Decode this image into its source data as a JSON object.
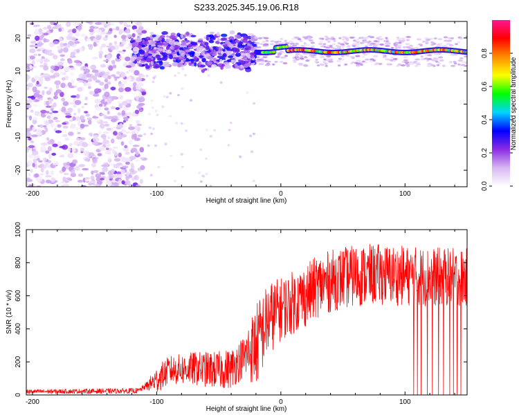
{
  "figure": {
    "title": "S233.2025.345.19.06.R18"
  },
  "chart_data": [
    {
      "type": "heatmap",
      "title": "S233.2025.345.19.06.R18",
      "xlabel": "Height of straight line (km)",
      "ylabel": "Frequency (Hz)",
      "xlim": [
        -205,
        150
      ],
      "ylim": [
        -25,
        25
      ],
      "x_ticks": [
        -200,
        -100,
        0,
        100
      ],
      "y_ticks": [
        20,
        10,
        0,
        -10,
        -20
      ],
      "colorbar": {
        "label": "Normalized spectral amplitude",
        "range": [
          0.0,
          1.0
        ],
        "ticks": [
          0.0,
          0.2,
          0.4,
          0.6,
          0.8
        ],
        "tick_labels": [
          "0.0",
          "0.2",
          "0.4",
          "0.6",
          "0.8"
        ],
        "colors": [
          "#ffffff",
          "#d6b6f2",
          "#8a2be2",
          "#0000ff",
          "#00d5ff",
          "#00ff00",
          "#ffff00",
          "#ff8c00",
          "#ff0000",
          "#ff1493"
        ]
      },
      "features": [
        {
          "name": "ridge",
          "x_range": [
            -20,
            150
          ],
          "frequency_hz": 16,
          "amplitude": 0.75
        },
        {
          "name": "peak_ridge",
          "x_range": [
            -120,
            -20
          ],
          "frequency_hz_range": [
            12,
            20
          ],
          "amplitude": 0.3
        },
        {
          "name": "noise",
          "x_range": [
            -205,
            -110
          ],
          "frequency_hz_range": [
            -25,
            25
          ],
          "amplitude": 0.15
        }
      ]
    },
    {
      "type": "line",
      "xlabel": "Height of straight line (km)",
      "ylabel": "SNR (10 * v/v)",
      "xlim": [
        -205,
        150
      ],
      "ylim": [
        0,
        1000
      ],
      "x_ticks": [
        -200,
        -100,
        0,
        100
      ],
      "y_ticks": [
        0,
        200,
        400,
        600,
        800,
        1000
      ],
      "color": "#ff0000",
      "trend": [
        {
          "x": -205,
          "y": 20
        },
        {
          "x": -115,
          "y": 25
        },
        {
          "x": -100,
          "y": 90
        },
        {
          "x": -90,
          "y": 150
        },
        {
          "x": -70,
          "y": 160
        },
        {
          "x": -50,
          "y": 150
        },
        {
          "x": -40,
          "y": 160
        },
        {
          "x": -30,
          "y": 230
        },
        {
          "x": -20,
          "y": 300
        },
        {
          "x": -10,
          "y": 460
        },
        {
          "x": 0,
          "y": 520
        },
        {
          "x": 10,
          "y": 560
        },
        {
          "x": 20,
          "y": 600
        },
        {
          "x": 30,
          "y": 660
        },
        {
          "x": 45,
          "y": 700
        },
        {
          "x": 60,
          "y": 720
        },
        {
          "x": 80,
          "y": 730
        },
        {
          "x": 100,
          "y": 720
        },
        {
          "x": 120,
          "y": 715
        },
        {
          "x": 150,
          "y": 710
        }
      ],
      "noise_amplitude": [
        {
          "x": -205,
          "y": 8
        },
        {
          "x": -110,
          "y": 10
        },
        {
          "x": -100,
          "y": 50
        },
        {
          "x": -30,
          "y": 80
        },
        {
          "x": -20,
          "y": 160
        },
        {
          "x": 0,
          "y": 120
        },
        {
          "x": 20,
          "y": 120
        },
        {
          "x": 150,
          "y": 110
        }
      ],
      "dropouts_x": [
        107,
        110,
        113,
        118,
        122,
        127,
        131,
        136,
        139,
        142,
        145
      ]
    }
  ]
}
